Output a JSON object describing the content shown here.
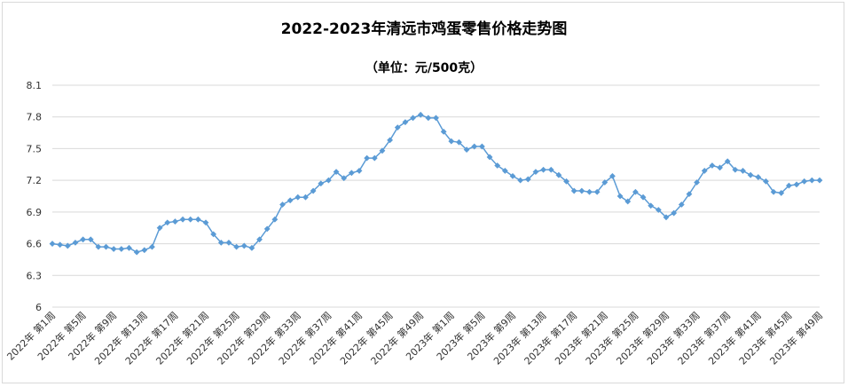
{
  "chart_data": {
    "type": "line",
    "title": "2022-2023年清远市鸡蛋零售价格走势图",
    "subtitle": "（单位：元/500克）",
    "xlabel": "",
    "ylabel": "",
    "ylim": [
      6,
      8.1
    ],
    "yticks": [
      "8.1",
      "7.8",
      "7.5",
      "7.2",
      "6.9",
      "6.6",
      "6.3",
      "6"
    ],
    "grid": "horizontal",
    "legend": "none",
    "line_color": "#5b9bd5",
    "tick_labels": [
      "2022年 第1周",
      "2022年 第5周",
      "2022年 第9周",
      "2022年 第13周",
      "2022年 第17周",
      "2022年 第21周",
      "2022年 第25周",
      "2022年 第29周",
      "2022年 第33周",
      "2022年 第37周",
      "2022年 第41周",
      "2022年 第45周",
      "2022年 第49周",
      "2023年 第1周",
      "2023年 第5周",
      "2023年 第9周",
      "2023年 第13周",
      "2023年 第17周",
      "2023年 第21周",
      "2023年 第25周",
      "2023年 第29周",
      "2023年 第33周",
      "2023年 第37周",
      "2023年 第41周",
      "2023年 第45周",
      "2023年 第49周"
    ],
    "values": [
      6.6,
      6.59,
      6.58,
      6.61,
      6.64,
      6.64,
      6.57,
      6.57,
      6.55,
      6.55,
      6.56,
      6.52,
      6.54,
      6.57,
      6.75,
      6.8,
      6.81,
      6.83,
      6.83,
      6.83,
      6.8,
      6.69,
      6.61,
      6.61,
      6.57,
      6.58,
      6.56,
      6.64,
      6.74,
      6.83,
      6.97,
      7.01,
      7.04,
      7.04,
      7.1,
      7.17,
      7.2,
      7.28,
      7.22,
      7.27,
      7.29,
      7.41,
      7.41,
      7.48,
      7.58,
      7.7,
      7.75,
      7.79,
      7.82,
      7.79,
      7.79,
      7.66,
      7.57,
      7.56,
      7.49,
      7.52,
      7.52,
      7.42,
      7.34,
      7.29,
      7.24,
      7.2,
      7.21,
      7.28,
      7.3,
      7.3,
      7.25,
      7.19,
      7.1,
      7.1,
      7.09,
      7.09,
      7.18,
      7.24,
      7.05,
      7.0,
      7.09,
      7.04,
      6.96,
      6.92,
      6.85,
      6.89,
      6.97,
      7.07,
      7.18,
      7.29,
      7.34,
      7.32,
      7.38,
      7.3,
      7.29,
      7.25,
      7.23,
      7.19,
      7.09,
      7.08,
      7.15,
      7.16,
      7.19,
      7.2,
      7.2
    ]
  }
}
